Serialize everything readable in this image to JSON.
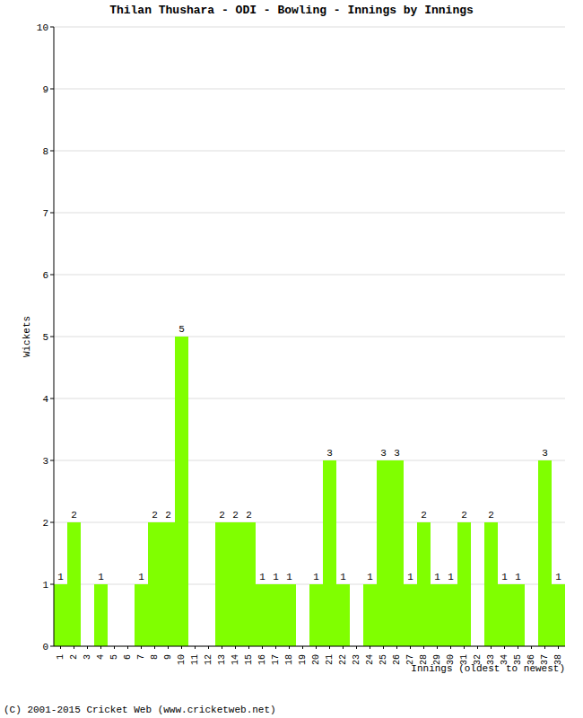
{
  "chart_data": {
    "type": "bar",
    "title": "Thilan Thushara - ODI - Bowling - Innings by Innings",
    "x_label": "Innings (oldest to newest)",
    "y_label": "Wickets",
    "annotations": [
      "(C) 2001-2015 Cricket Web (www.cricketweb.net)"
    ],
    "categories": [
      "1",
      "2",
      "3",
      "4",
      "5",
      "6",
      "7",
      "8",
      "9",
      "10",
      "11",
      "12",
      "13",
      "14",
      "15",
      "16",
      "17",
      "18",
      "19",
      "20",
      "21",
      "22",
      "23",
      "24",
      "25",
      "26",
      "27",
      "28",
      "29",
      "30",
      "31",
      "32",
      "33",
      "34",
      "35",
      "36",
      "37",
      "38"
    ],
    "values": [
      1,
      2,
      0,
      1,
      0,
      0,
      1,
      2,
      2,
      5,
      0,
      0,
      2,
      2,
      2,
      1,
      1,
      1,
      0,
      1,
      3,
      1,
      0,
      1,
      3,
      3,
      1,
      2,
      1,
      1,
      2,
      0,
      2,
      1,
      1,
      0,
      3,
      1
    ],
    "color": "#80ff00",
    "ylim": [
      0,
      10
    ],
    "yticks": [
      0,
      1,
      2,
      3,
      4,
      5,
      6,
      7,
      8,
      9,
      10
    ],
    "grid": true,
    "data_labels": true
  }
}
